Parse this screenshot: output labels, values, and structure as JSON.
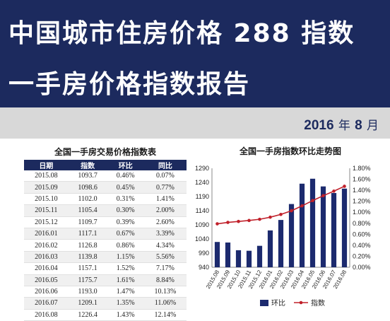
{
  "header": {
    "title_line1": "中国城市住房价格 288 指数",
    "title_line2": "一手房价格指数报告"
  },
  "report_date": {
    "year": "2016",
    "year_unit": "年",
    "month": "8",
    "month_unit": "月"
  },
  "table": {
    "title": "全国一手房交易价格指数表",
    "headers": [
      "日期",
      "指数",
      "环比",
      "同比"
    ],
    "rows": [
      [
        "2015.08",
        "1093.7",
        "0.46%",
        "0.07%"
      ],
      [
        "2015.09",
        "1098.6",
        "0.45%",
        "0.77%"
      ],
      [
        "2015.10",
        "1102.0",
        "0.31%",
        "1.41%"
      ],
      [
        "2015.11",
        "1105.4",
        "0.30%",
        "2.00%"
      ],
      [
        "2015.12",
        "1109.7",
        "0.39%",
        "2.60%"
      ],
      [
        "2016.01",
        "1117.1",
        "0.67%",
        "3.39%"
      ],
      [
        "2016.02",
        "1126.8",
        "0.86%",
        "4.34%"
      ],
      [
        "2016.03",
        "1139.8",
        "1.15%",
        "5.56%"
      ],
      [
        "2016.04",
        "1157.1",
        "1.52%",
        "7.17%"
      ],
      [
        "2016.05",
        "1175.7",
        "1.61%",
        "8.84%"
      ],
      [
        "2016.06",
        "1193.0",
        "1.47%",
        "10.13%"
      ],
      [
        "2016.07",
        "1209.1",
        "1.35%",
        "11.06%"
      ],
      [
        "2016.08",
        "1226.4",
        "1.43%",
        "12.14%"
      ]
    ]
  },
  "chart_data": {
    "type": "bar",
    "title": "全国一手房指数环比走势图",
    "categories": [
      "2015.08",
      "2015.09",
      "2015.10",
      "2015.11",
      "2015.12",
      "2016.01",
      "2016.02",
      "2016.03",
      "2016.04",
      "2016.05",
      "2016.06",
      "2016.07",
      "2016.08"
    ],
    "series": [
      {
        "name": "环比",
        "kind": "bar",
        "axis": "right",
        "color": "#1c2a6e",
        "values": [
          0.46,
          0.45,
          0.31,
          0.3,
          0.39,
          0.67,
          0.86,
          1.15,
          1.52,
          1.61,
          1.47,
          1.35,
          1.43
        ]
      },
      {
        "name": "指数",
        "kind": "line",
        "axis": "left",
        "color": "#c0202a",
        "values": [
          1093.7,
          1098.6,
          1102.0,
          1105.4,
          1109.7,
          1117.1,
          1126.8,
          1139.8,
          1157.1,
          1175.7,
          1193.0,
          1209.1,
          1226.4
        ]
      }
    ],
    "y_left": {
      "min": 940,
      "max": 1290,
      "ticks": [
        "940",
        "990",
        "1040",
        "1090",
        "1140",
        "1190",
        "1240",
        "1290"
      ]
    },
    "y_right": {
      "min": 0,
      "max": 1.8,
      "ticks": [
        "0.00%",
        "0.20%",
        "0.40%",
        "0.60%",
        "0.80%",
        "1.00%",
        "1.20%",
        "1.40%",
        "1.60%",
        "1.80%"
      ]
    },
    "legend_position": "bottom",
    "grid": false
  }
}
